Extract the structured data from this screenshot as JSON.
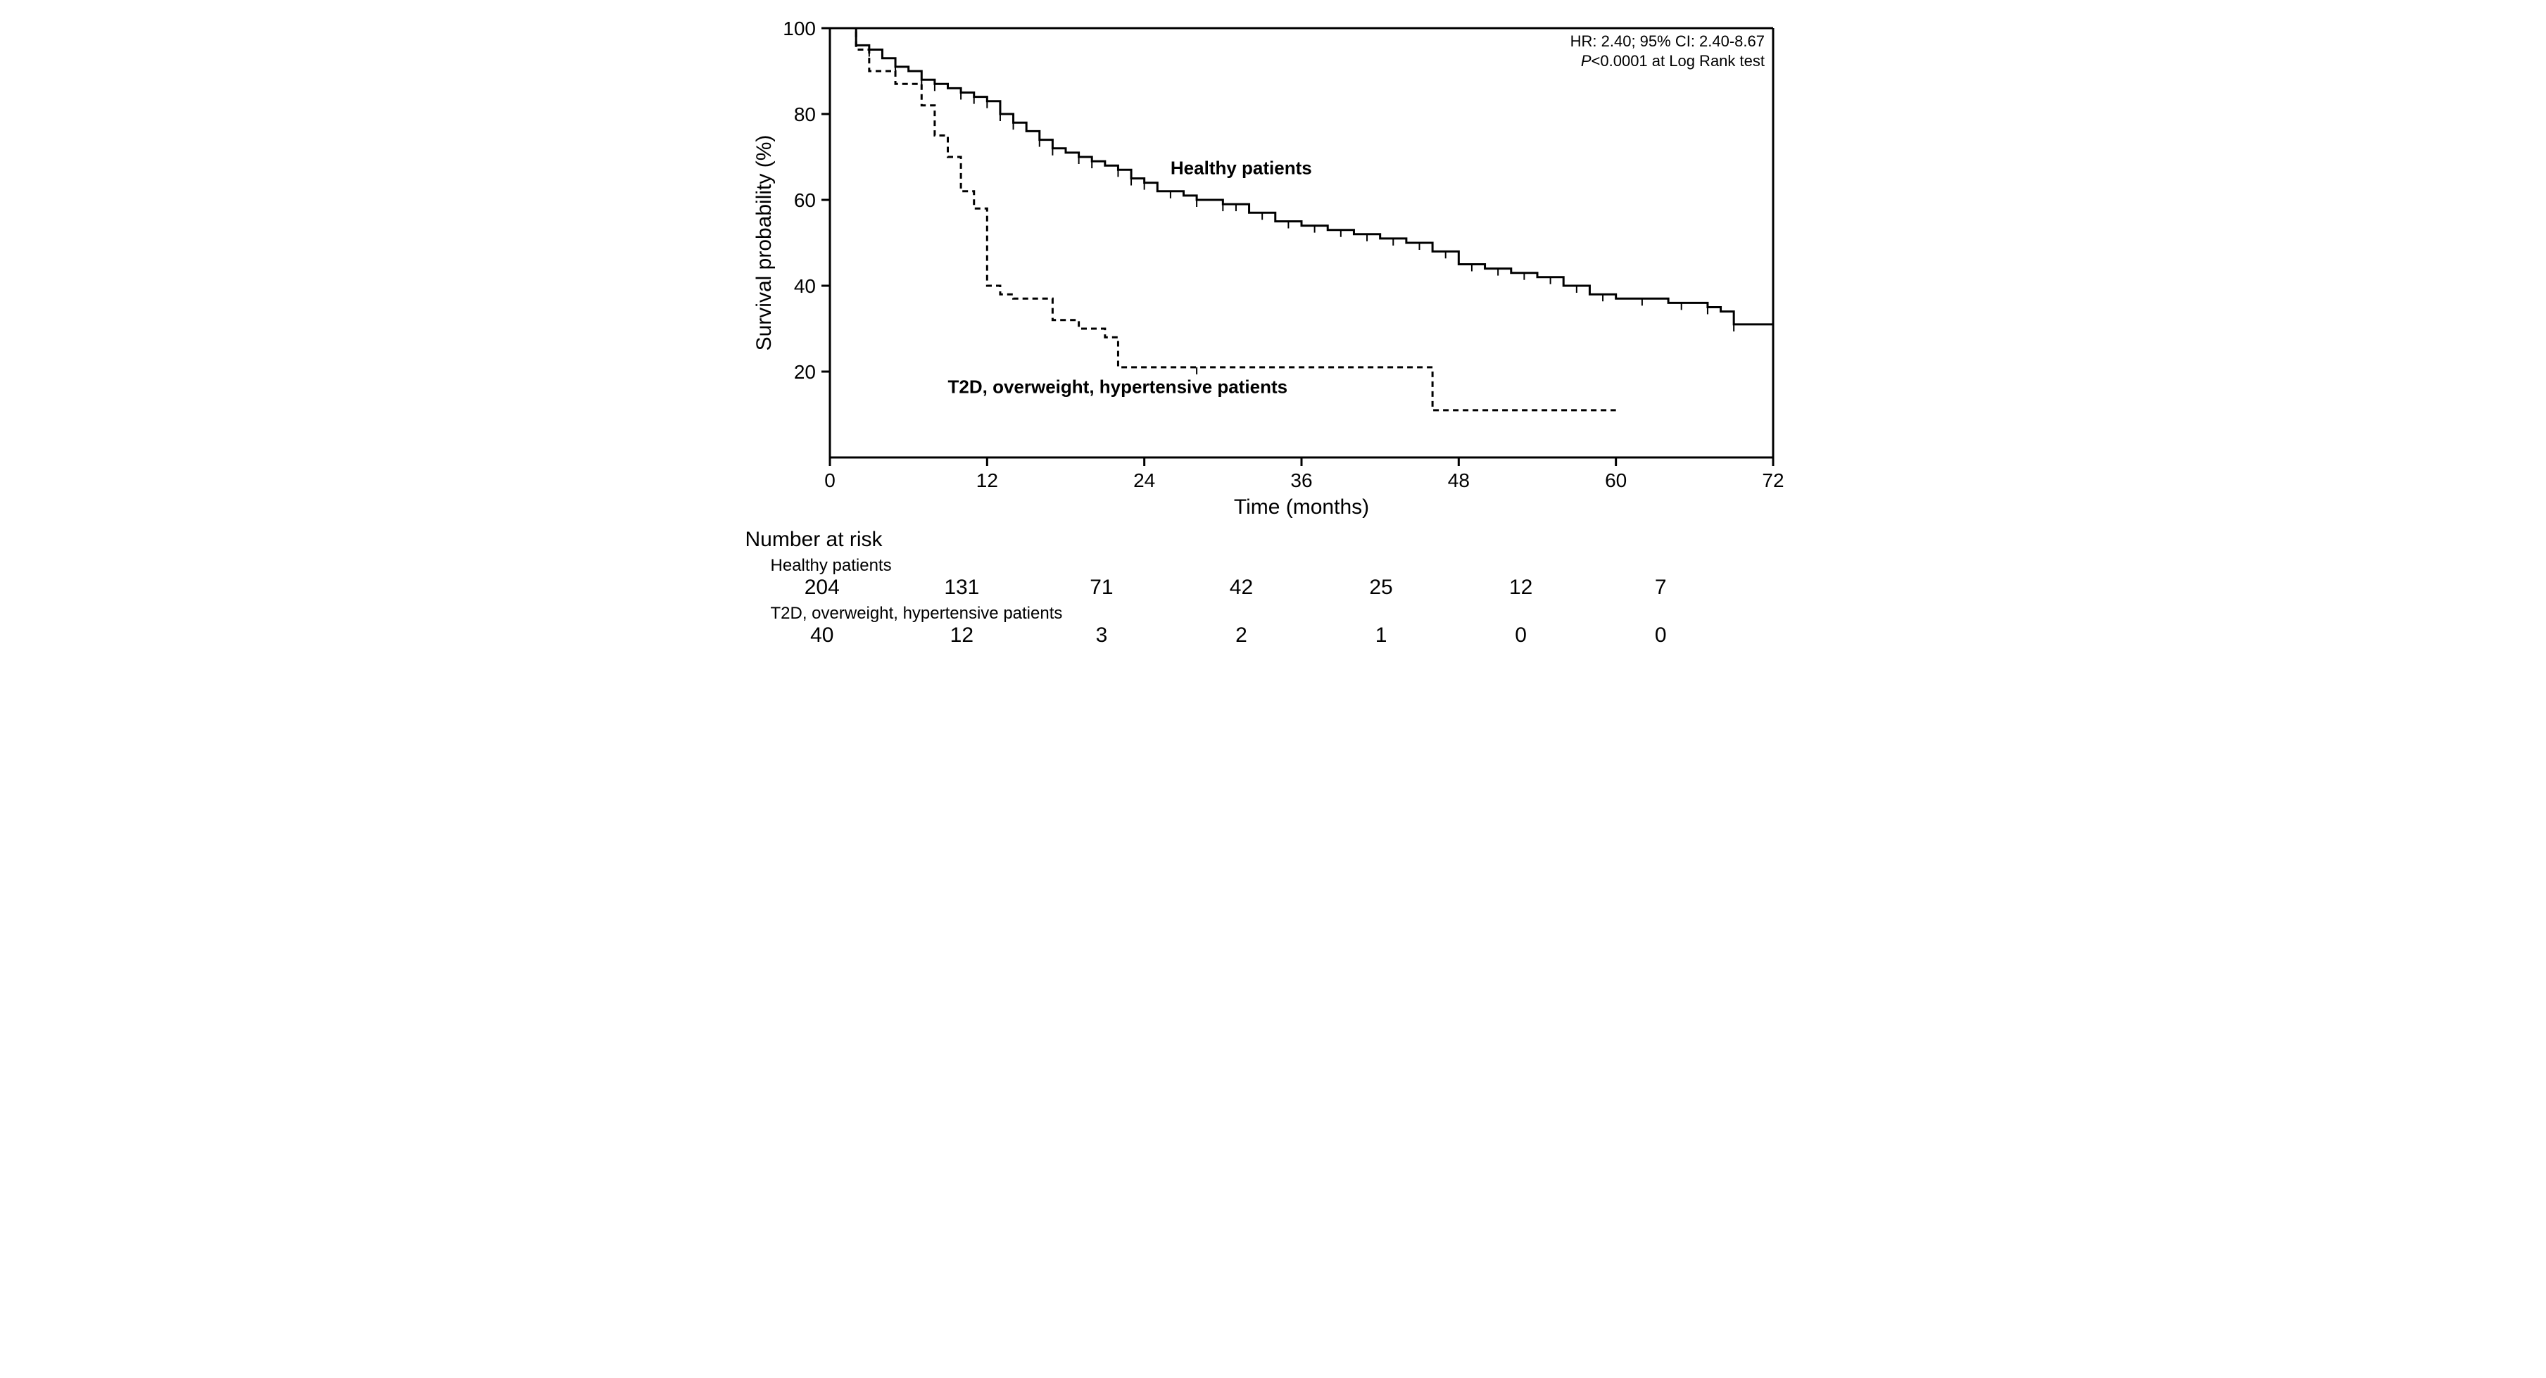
{
  "chart": {
    "type": "kaplan-meier",
    "background_color": "#ffffff",
    "axis_color": "#000000",
    "line_color": "#000000",
    "line_width": 3,
    "censor_tick_len": 10,
    "xlabel": "Time (months)",
    "ylabel": "Survival probability (%)",
    "label_fontsize": 30,
    "tick_fontsize": 28,
    "xlim": [
      0,
      72
    ],
    "ylim": [
      0,
      100
    ],
    "xticks": [
      0,
      12,
      24,
      36,
      48,
      60,
      72
    ],
    "yticks": [
      20,
      40,
      60,
      80,
      100
    ],
    "annotation_box": {
      "lines": [
        "HR: 2.40; 95% CI: 2.40-8.67",
        "P<0.0001 at Log Rank test"
      ],
      "fontsize": 22,
      "italic_prefix_line2": "P"
    },
    "series": [
      {
        "name": "Healthy patients",
        "label": "Healthy patients",
        "label_fontsize": 26,
        "label_weight": "bold",
        "label_pos": {
          "x": 26,
          "y": 66
        },
        "dash": "none",
        "steps": [
          [
            0,
            100
          ],
          [
            2,
            96
          ],
          [
            3,
            95
          ],
          [
            4,
            93
          ],
          [
            5,
            91
          ],
          [
            6,
            90
          ],
          [
            7,
            88
          ],
          [
            8,
            87
          ],
          [
            9,
            86
          ],
          [
            10,
            85
          ],
          [
            11,
            84
          ],
          [
            12,
            83
          ],
          [
            13,
            80
          ],
          [
            14,
            78
          ],
          [
            15,
            76
          ],
          [
            16,
            74
          ],
          [
            17,
            72
          ],
          [
            18,
            71
          ],
          [
            19,
            70
          ],
          [
            20,
            69
          ],
          [
            21,
            68
          ],
          [
            22,
            67
          ],
          [
            23,
            65
          ],
          [
            24,
            64
          ],
          [
            25,
            62
          ],
          [
            27,
            61
          ],
          [
            28,
            60
          ],
          [
            30,
            59
          ],
          [
            32,
            57
          ],
          [
            34,
            55
          ],
          [
            36,
            54
          ],
          [
            38,
            53
          ],
          [
            40,
            52
          ],
          [
            42,
            51
          ],
          [
            44,
            50
          ],
          [
            46,
            48
          ],
          [
            48,
            45
          ],
          [
            50,
            44
          ],
          [
            52,
            43
          ],
          [
            54,
            42
          ],
          [
            56,
            40
          ],
          [
            58,
            38
          ],
          [
            60,
            37
          ],
          [
            64,
            36
          ],
          [
            67,
            35
          ],
          [
            68,
            34
          ],
          [
            69,
            31
          ],
          [
            72,
            31
          ]
        ],
        "censors": [
          [
            3,
            95
          ],
          [
            5,
            91
          ],
          [
            7,
            88
          ],
          [
            8,
            87
          ],
          [
            10,
            85
          ],
          [
            11,
            84
          ],
          [
            12,
            83
          ],
          [
            13,
            80
          ],
          [
            14,
            78
          ],
          [
            16,
            74
          ],
          [
            17,
            72
          ],
          [
            19,
            70
          ],
          [
            20,
            69
          ],
          [
            22,
            67
          ],
          [
            23,
            65
          ],
          [
            24,
            64
          ],
          [
            26,
            62
          ],
          [
            28,
            60
          ],
          [
            30,
            59
          ],
          [
            31,
            59
          ],
          [
            33,
            57
          ],
          [
            35,
            55
          ],
          [
            37,
            54
          ],
          [
            39,
            53
          ],
          [
            41,
            52
          ],
          [
            43,
            51
          ],
          [
            45,
            50
          ],
          [
            47,
            48
          ],
          [
            49,
            45
          ],
          [
            51,
            44
          ],
          [
            53,
            43
          ],
          [
            55,
            42
          ],
          [
            57,
            40
          ],
          [
            59,
            38
          ],
          [
            62,
            37
          ],
          [
            65,
            36
          ],
          [
            67,
            35
          ],
          [
            69,
            31
          ]
        ]
      },
      {
        "name": "T2D, overweight, hypertensive patients",
        "label": "T2D, overweight, hypertensive patients",
        "label_fontsize": 26,
        "label_weight": "bold",
        "label_pos": {
          "x": 9,
          "y": 15
        },
        "dash": "8,6",
        "steps": [
          [
            0,
            100
          ],
          [
            2,
            95
          ],
          [
            3,
            90
          ],
          [
            5,
            87
          ],
          [
            7,
            82
          ],
          [
            8,
            75
          ],
          [
            9,
            70
          ],
          [
            10,
            62
          ],
          [
            11,
            58
          ],
          [
            12,
            40
          ],
          [
            13,
            38
          ],
          [
            14,
            37
          ],
          [
            17,
            32
          ],
          [
            19,
            30
          ],
          [
            21,
            28
          ],
          [
            22,
            21
          ],
          [
            28,
            21
          ],
          [
            29,
            21
          ],
          [
            45,
            21
          ],
          [
            46,
            11
          ],
          [
            60,
            11
          ]
        ],
        "censors": [
          [
            28,
            21
          ]
        ]
      }
    ]
  },
  "risk_table": {
    "title": "Number at risk",
    "title_fontsize": 30,
    "sub_fontsize": 24,
    "value_fontsize": 30,
    "timepoints": [
      0,
      12,
      24,
      36,
      48,
      60,
      72
    ],
    "rows": [
      {
        "label": "Healthy patients",
        "values": [
          204,
          131,
          71,
          42,
          25,
          12,
          7
        ]
      },
      {
        "label": "T2D, overweight, hypertensive patients",
        "values": [
          40,
          12,
          3,
          2,
          1,
          0,
          0
        ]
      }
    ]
  }
}
